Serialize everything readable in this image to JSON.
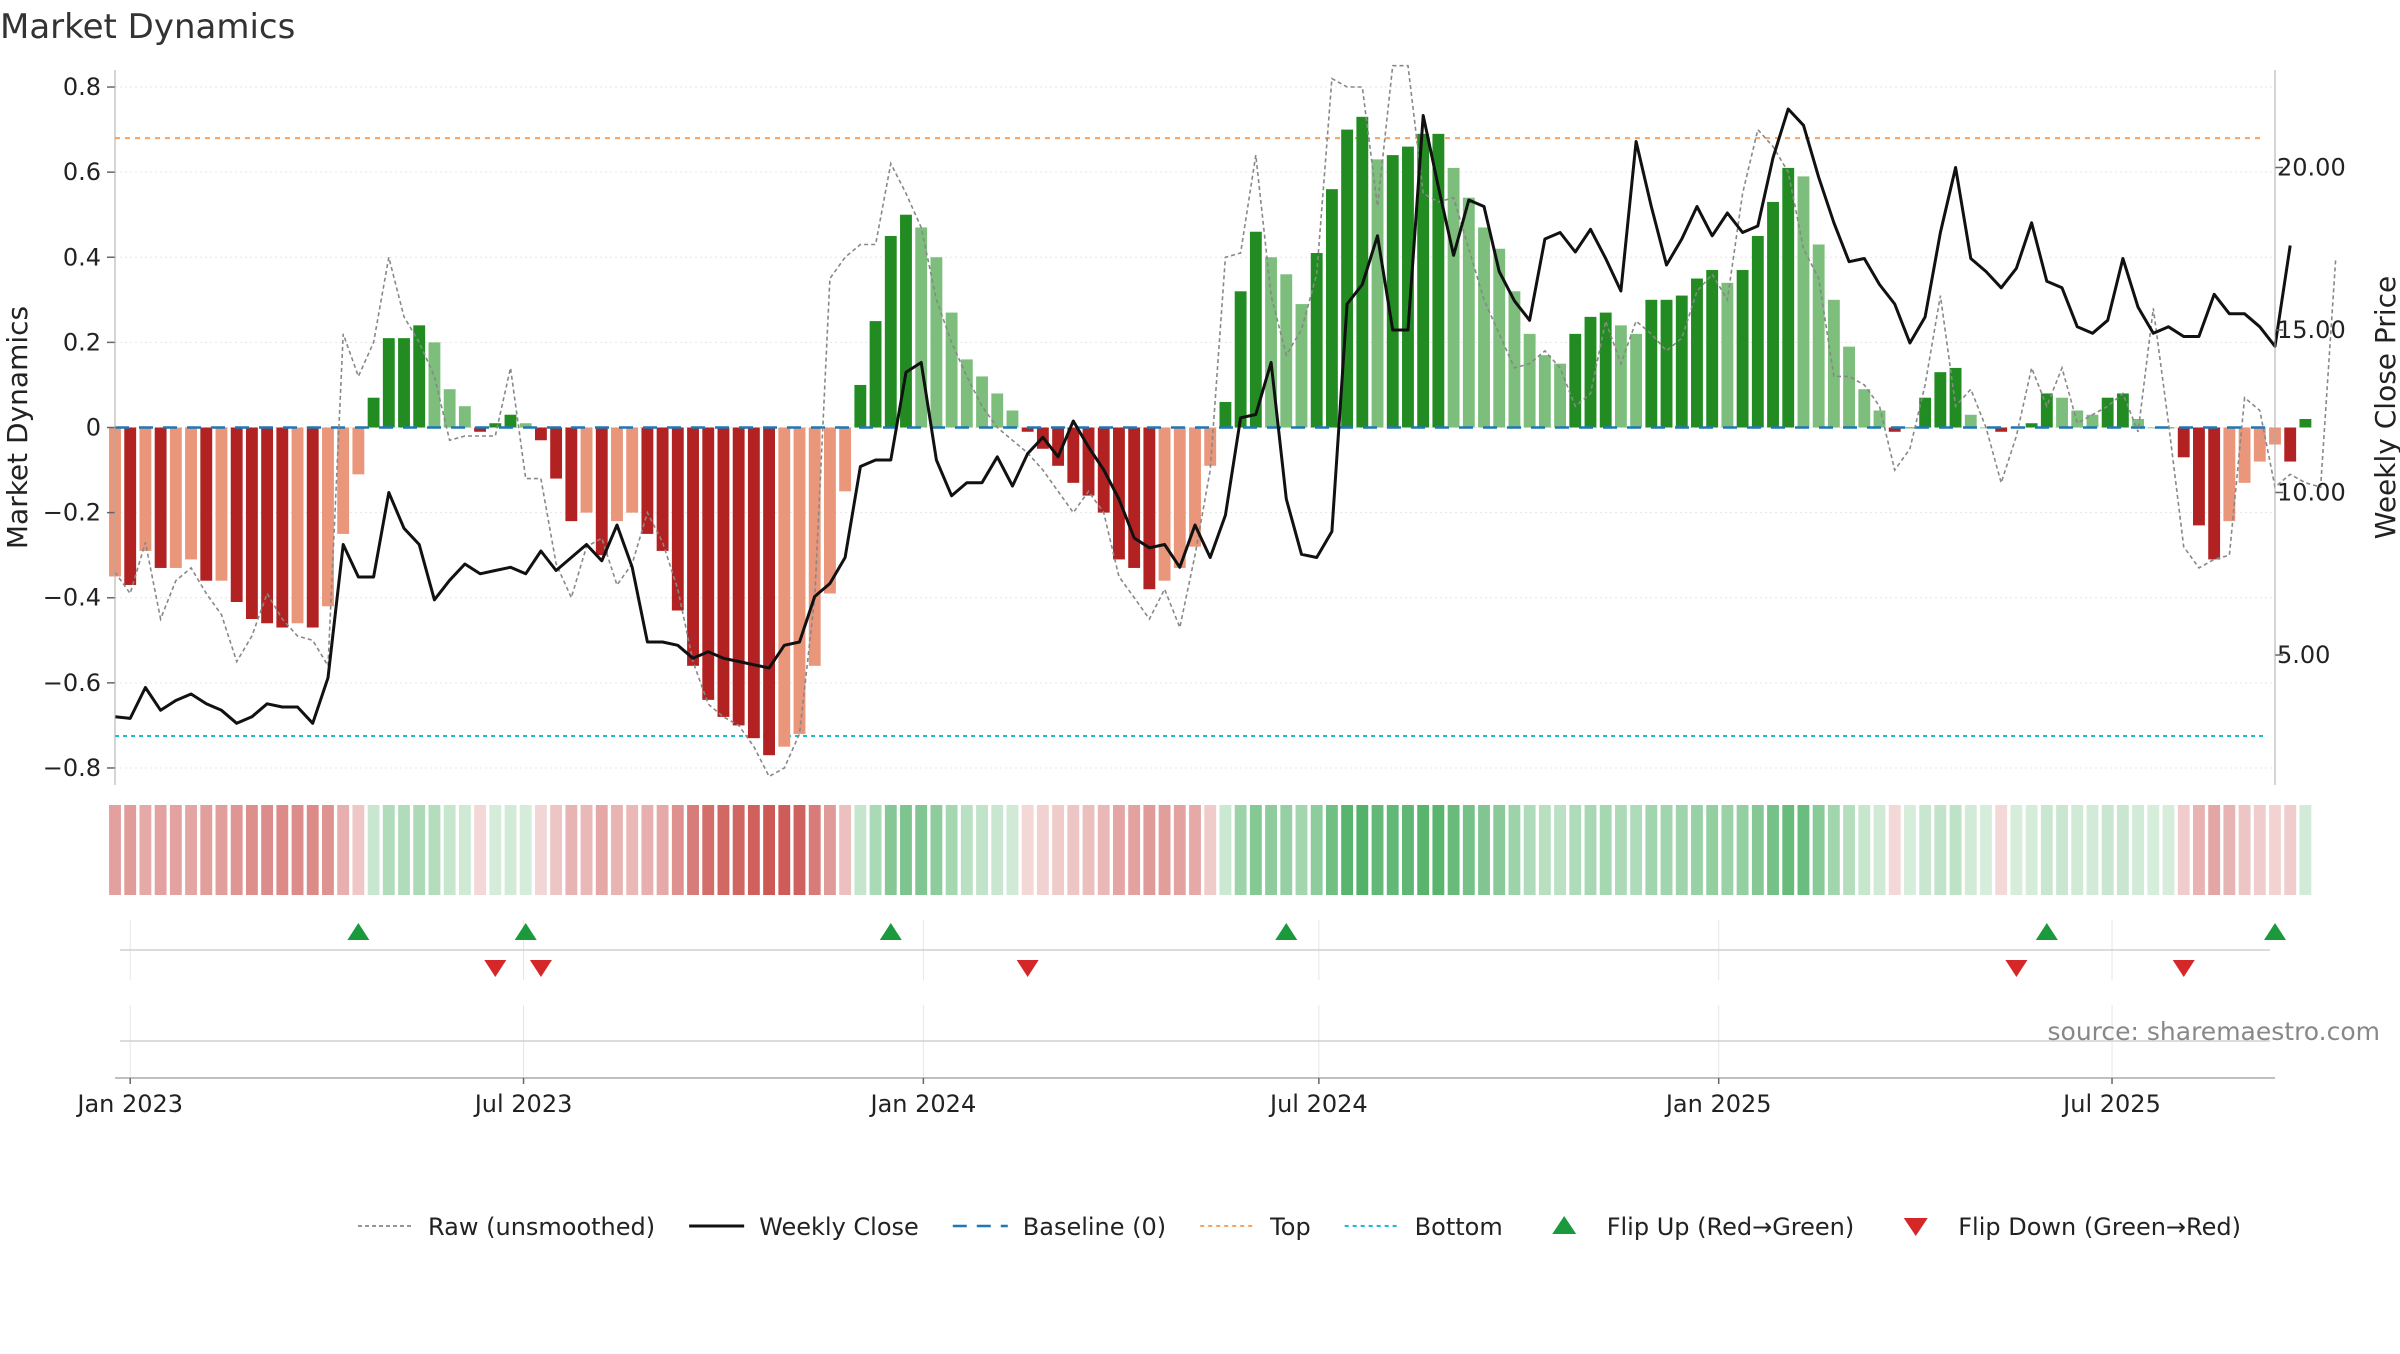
{
  "chart_data": {
    "type": "bar",
    "title": "Market Dynamics",
    "ylabel_left": "Market Dynamics",
    "ylabel_right": "Weekly Close Price",
    "source": "source: sharemaestro.com",
    "ylim_left": [
      -0.84,
      0.84
    ],
    "yticks_left": [
      "0.8",
      "0.6",
      "0.4",
      "0.2",
      "0",
      "−0.2",
      "−0.4",
      "−0.6",
      "−0.8"
    ],
    "ylim_right": [
      1.0,
      23.0
    ],
    "yticks_right": [
      "20.00",
      "15.00",
      "10.00",
      "5.00"
    ],
    "x_start": "2022-12-25",
    "x_end": "2025-09-14",
    "x_ticks": [
      {
        "date": "2023-01-01",
        "label": "Jan 2023"
      },
      {
        "date": "2023-07-01",
        "label": "Jul 2023"
      },
      {
        "date": "2024-01-01",
        "label": "Jan 2024"
      },
      {
        "date": "2024-07-01",
        "label": "Jul 2024"
      },
      {
        "date": "2025-01-01",
        "label": "Jan 2025"
      },
      {
        "date": "2025-07-01",
        "label": "Jul 2025"
      }
    ],
    "weeks_start": "2022-12-25",
    "week_interval_days": 7,
    "top_threshold": 0.68,
    "bottom_threshold": -0.725,
    "bar_values": [
      -0.35,
      -0.37,
      -0.29,
      -0.33,
      -0.33,
      -0.31,
      -0.36,
      -0.36,
      -0.41,
      -0.45,
      -0.46,
      -0.47,
      -0.46,
      -0.47,
      -0.42,
      -0.25,
      -0.11,
      0.07,
      0.21,
      0.21,
      0.24,
      0.2,
      0.09,
      0.05,
      -0.01,
      0.01,
      0.03,
      0.01,
      -0.03,
      -0.12,
      -0.22,
      -0.2,
      -0.3,
      -0.22,
      -0.2,
      -0.25,
      -0.29,
      -0.43,
      -0.56,
      -0.64,
      -0.68,
      -0.7,
      -0.73,
      -0.77,
      -0.75,
      -0.72,
      -0.56,
      -0.39,
      -0.15,
      0.1,
      0.25,
      0.45,
      0.5,
      0.47,
      0.4,
      0.27,
      0.16,
      0.12,
      0.08,
      0.04,
      -0.01,
      -0.05,
      -0.09,
      -0.13,
      -0.16,
      -0.2,
      -0.31,
      -0.33,
      -0.38,
      -0.36,
      -0.33,
      -0.28,
      -0.09,
      0.06,
      0.32,
      0.46,
      0.4,
      0.36,
      0.29,
      0.41,
      0.56,
      0.7,
      0.73,
      0.63,
      0.64,
      0.66,
      0.69,
      0.69,
      0.61,
      0.54,
      0.47,
      0.42,
      0.32,
      0.22,
      0.17,
      0.15,
      0.22,
      0.26,
      0.27,
      0.24,
      0.22,
      0.3,
      0.3,
      0.31,
      0.35,
      0.37,
      0.34,
      0.37,
      0.45,
      0.53,
      0.61,
      0.59,
      0.43,
      0.3,
      0.19,
      0.09,
      0.04,
      -0.01,
      0.0,
      0.07,
      0.13,
      0.14,
      0.03,
      0.0,
      -0.01,
      0.0,
      0.01,
      0.08,
      0.07,
      0.04,
      0.03,
      0.07,
      0.08,
      0.02,
      0.0,
      0.0,
      -0.07,
      -0.23,
      -0.31,
      -0.22,
      -0.13,
      -0.08,
      -0.04,
      -0.08,
      0.02
    ],
    "raw_values": [
      -0.34,
      -0.39,
      -0.27,
      -0.45,
      -0.36,
      -0.33,
      -0.39,
      -0.44,
      -0.55,
      -0.49,
      -0.39,
      -0.45,
      -0.49,
      -0.5,
      -0.56,
      0.22,
      0.12,
      0.2,
      0.4,
      0.26,
      0.2,
      0.12,
      -0.03,
      -0.02,
      -0.02,
      -0.02,
      0.14,
      -0.12,
      -0.12,
      -0.32,
      -0.4,
      -0.28,
      -0.26,
      -0.37,
      -0.32,
      -0.2,
      -0.27,
      -0.38,
      -0.55,
      -0.65,
      -0.68,
      -0.7,
      -0.75,
      -0.82,
      -0.8,
      -0.72,
      -0.4,
      0.35,
      0.4,
      0.43,
      0.43,
      0.62,
      0.55,
      0.47,
      0.3,
      0.2,
      0.12,
      0.05,
      0.0,
      -0.03,
      -0.06,
      -0.1,
      -0.15,
      -0.2,
      -0.15,
      -0.2,
      -0.35,
      -0.4,
      -0.45,
      -0.38,
      -0.47,
      -0.3,
      -0.1,
      0.4,
      0.41,
      0.64,
      0.31,
      0.17,
      0.23,
      0.36,
      0.82,
      0.8,
      0.8,
      0.52,
      0.85,
      0.85,
      0.55,
      0.53,
      0.54,
      0.42,
      0.3,
      0.22,
      0.14,
      0.15,
      0.18,
      0.14,
      0.05,
      0.08,
      0.25,
      0.15,
      0.25,
      0.22,
      0.18,
      0.21,
      0.32,
      0.36,
      0.3,
      0.55,
      0.7,
      0.66,
      0.6,
      0.42,
      0.35,
      0.12,
      0.12,
      0.1,
      0.05,
      -0.1,
      -0.05,
      0.1,
      0.31,
      0.05,
      0.09,
      0.0,
      -0.13,
      -0.02,
      0.14,
      0.05,
      0.14,
      0.01,
      0.03,
      0.05,
      0.08,
      -0.01,
      0.28,
      0.01,
      -0.28,
      -0.33,
      -0.31,
      -0.3,
      0.07,
      0.04,
      -0.14,
      -0.11,
      -0.13,
      -0.14,
      0.4
    ],
    "close_prices": [
      3.1,
      3.05,
      4.0,
      3.3,
      3.6,
      3.8,
      3.5,
      3.3,
      2.9,
      3.1,
      3.5,
      3.4,
      3.4,
      2.9,
      4.3,
      8.4,
      7.4,
      7.4,
      10.0,
      8.9,
      8.4,
      6.7,
      7.3,
      7.8,
      7.5,
      7.6,
      7.7,
      7.5,
      8.2,
      7.6,
      8.0,
      8.4,
      7.9,
      9.0,
      7.7,
      5.4,
      5.4,
      5.3,
      4.9,
      5.1,
      4.9,
      4.8,
      4.7,
      4.6,
      5.3,
      5.4,
      6.8,
      7.2,
      8.0,
      10.8,
      11.0,
      11.0,
      13.7,
      14.0,
      11.0,
      9.9,
      10.3,
      10.3,
      11.1,
      10.2,
      11.2,
      11.7,
      11.1,
      12.2,
      11.4,
      10.7,
      9.8,
      8.6,
      8.3,
      8.4,
      7.7,
      9.0,
      8.0,
      9.3,
      12.3,
      12.4,
      14.0,
      9.8,
      8.1,
      8.0,
      8.8,
      15.8,
      16.4,
      17.9,
      15.0,
      15.0,
      21.6,
      19.4,
      17.3,
      19.0,
      18.8,
      16.8,
      15.9,
      15.3,
      17.8,
      18.0,
      17.4,
      18.1,
      17.2,
      16.2,
      20.8,
      18.8,
      17.0,
      17.8,
      18.8,
      17.9,
      18.6,
      18.0,
      18.2,
      20.3,
      21.8,
      21.3,
      19.7,
      18.3,
      17.1,
      17.2,
      16.4,
      15.8,
      14.6,
      15.4,
      18.0,
      20.0,
      17.2,
      16.8,
      16.3,
      16.9,
      18.3,
      16.5,
      16.3,
      15.1,
      14.9,
      15.3,
      17.2,
      15.7,
      14.9,
      15.1,
      14.8,
      14.8,
      16.1,
      15.5,
      15.5,
      15.1,
      14.5,
      17.6
    ],
    "flip_up_dates": [
      "2023-04-16",
      "2023-07-02",
      "2023-12-17",
      "2024-06-16",
      "2025-06-01",
      "2025-09-14"
    ],
    "flip_down_dates": [
      "2023-06-18",
      "2023-07-09",
      "2024-02-18",
      "2025-05-18",
      "2025-08-03"
    ],
    "legend": [
      {
        "label": "Raw (unsmoothed)",
        "kind": "dashed-line",
        "color": "#888888"
      },
      {
        "label": "Weekly Close",
        "kind": "line",
        "color": "#111111"
      },
      {
        "label": "Baseline (0)",
        "kind": "dashed-line",
        "color": "#1f77b4"
      },
      {
        "label": "Top",
        "kind": "dotted-line",
        "color": "#f4a460"
      },
      {
        "label": "Bottom",
        "kind": "dotted-line",
        "color": "#17becf"
      },
      {
        "label": "Flip Up (Red→Green)",
        "kind": "triangle-up",
        "color": "#1a9a3c"
      },
      {
        "label": "Flip Down (Green→Red)",
        "kind": "triangle-down",
        "color": "#d62728"
      }
    ],
    "legend_position": "bottom-center",
    "grid": true,
    "colors": {
      "bar_pos_strong": "#228b22",
      "bar_pos_weak": "#7dbe7d",
      "bar_neg_strong": "#b22222",
      "bar_neg_weak": "#e9967a",
      "heat_pos": "#1f9a3c",
      "heat_neg": "#c0302b",
      "close_line": "#111111",
      "raw_line": "#888888",
      "baseline": "#1f77b4",
      "top": "#f4a460",
      "bottom": "#17becf",
      "flip_up": "#1a9a3c",
      "flip_down": "#d62728"
    }
  }
}
